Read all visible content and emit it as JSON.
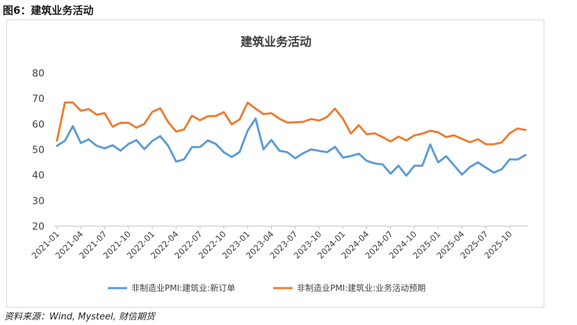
{
  "figure": {
    "caption": "图6：建筑业务活动",
    "source": "资料来源：Wind, Mysteel, 财信期货"
  },
  "colors": {
    "new_orders": "#5b9bd5",
    "expectations": "#ed7d31",
    "axis": "#bfbfbf",
    "text": "#404040"
  },
  "chart_data": {
    "type": "line",
    "title": "建筑业务活动",
    "xlabel": "",
    "ylabel": "",
    "ylim": [
      20,
      80
    ],
    "yticks": [
      20,
      30,
      40,
      50,
      60,
      70,
      80
    ],
    "grid": false,
    "legend_position": "bottom",
    "x_tick_labels": [
      "2021-01",
      "2021-04",
      "2021-07",
      "2021-10",
      "2022-01",
      "2022-04",
      "2022-07",
      "2022-10",
      "2023-01",
      "2023-04",
      "2023-07",
      "2023-10",
      "2024-01",
      "2024-04",
      "2024-07",
      "2024-10",
      "2025-01",
      "2025-04",
      "2025-07",
      "2025-10"
    ],
    "x_start": "2021-01",
    "x_end": "2025-12",
    "series": [
      {
        "name": "非制造业PMI:建筑业:新订单",
        "color_key": "new_orders",
        "values": [
          51.5,
          53.5,
          59.2,
          52.6,
          54.0,
          51.5,
          50.5,
          51.7,
          49.6,
          52.2,
          53.7,
          50.2,
          53.4,
          55.3,
          51.5,
          45.3,
          46.2,
          51.0,
          51.0,
          53.6,
          52.2,
          49.0,
          47.1,
          49.1,
          57.4,
          62.2,
          50.1,
          53.8,
          49.6,
          49.0,
          46.6,
          48.6,
          50.1,
          49.5,
          49.0,
          51.1,
          46.9,
          47.5,
          48.4,
          45.6,
          44.6,
          44.2,
          40.6,
          43.7,
          39.8,
          43.7,
          43.7,
          52.0,
          45.0,
          47.4,
          43.8,
          40.2,
          43.2,
          45.0,
          43.0,
          41.0,
          42.3,
          46.2,
          46.1,
          47.9
        ]
      },
      {
        "name": "非制造业PMI:建筑业:业务活动预期",
        "color_key": "expectations",
        "values": [
          53.5,
          68.5,
          68.5,
          65.2,
          65.9,
          63.7,
          64.3,
          59.0,
          60.5,
          60.5,
          58.6,
          60.1,
          64.8,
          66.2,
          60.8,
          57.1,
          57.9,
          63.3,
          61.5,
          63.1,
          63.2,
          64.7,
          59.9,
          61.8,
          68.4,
          66.1,
          63.9,
          64.3,
          62.1,
          60.6,
          60.7,
          60.9,
          62.0,
          61.4,
          62.8,
          66.1,
          62.1,
          56.3,
          59.6,
          56.0,
          56.4,
          54.9,
          53.2,
          55.1,
          53.6,
          55.6,
          56.3,
          57.4,
          56.8,
          54.9,
          55.6,
          54.2,
          52.9,
          54.1,
          52.1,
          52.1,
          52.8,
          56.4,
          58.3,
          57.7
        ]
      }
    ]
  }
}
